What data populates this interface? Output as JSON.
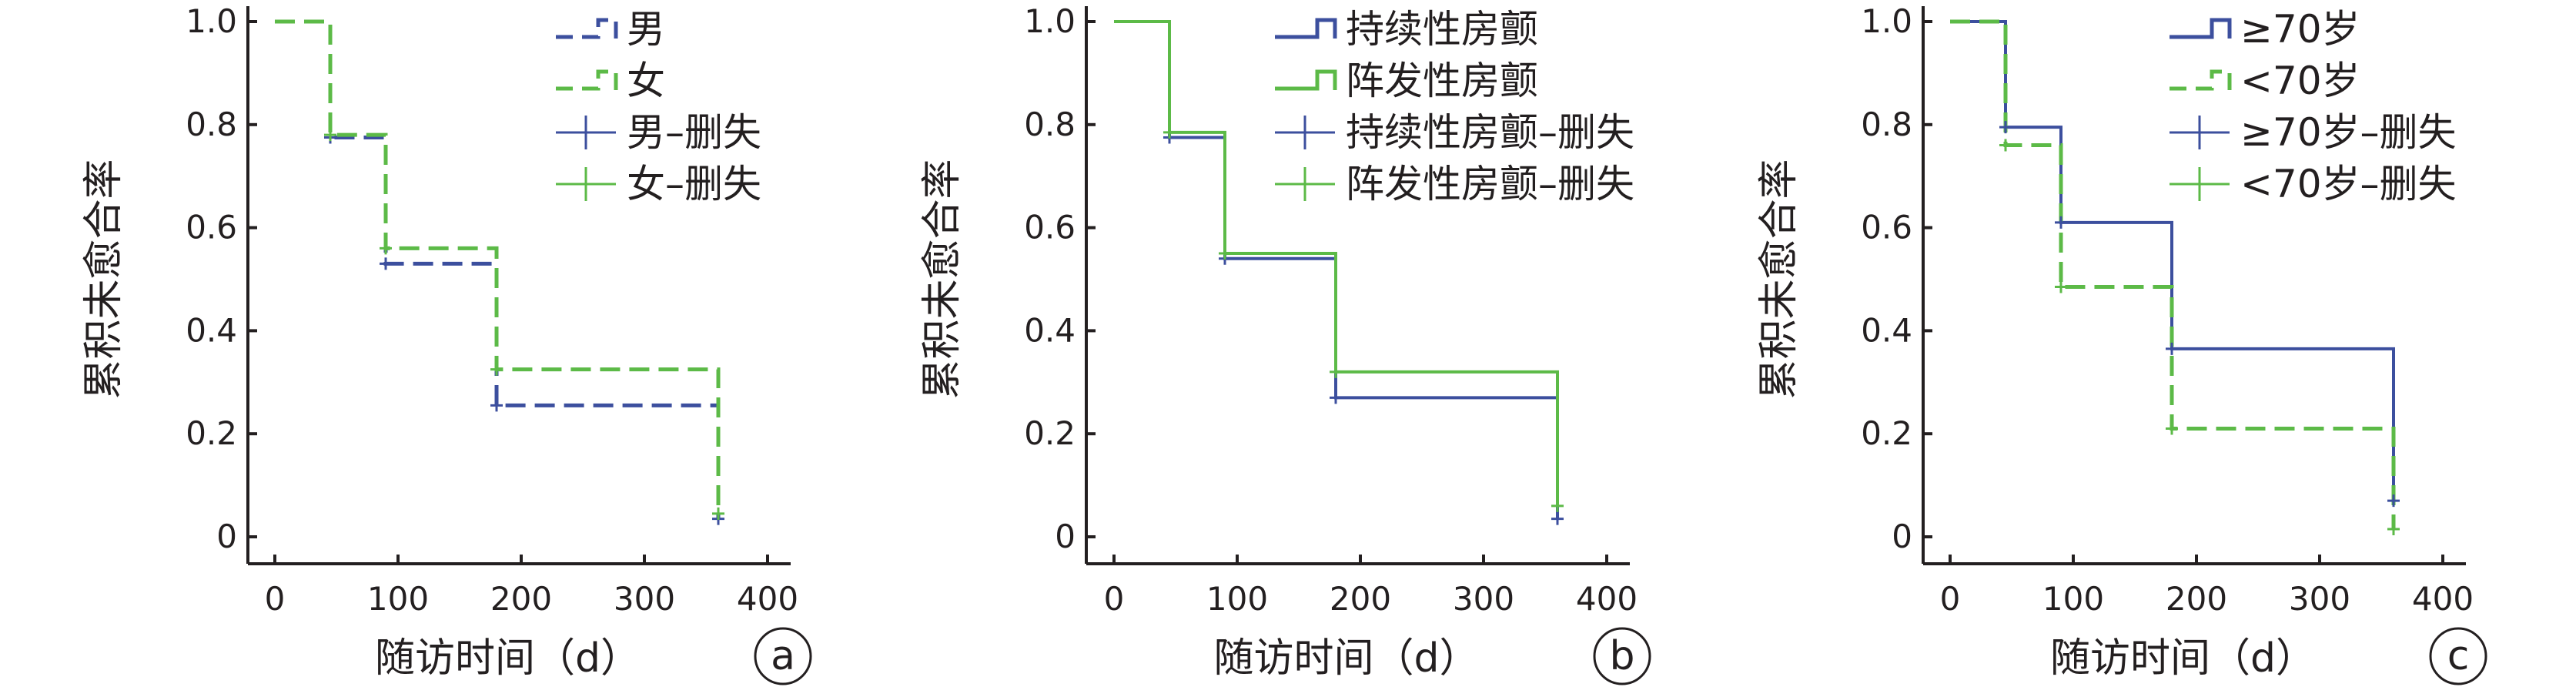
{
  "colors": {
    "blue": "#3c4f9e",
    "green": "#5cba47",
    "axis": "#231f20"
  },
  "chart_data": [
    {
      "type": "line",
      "step": true,
      "panel_label": "a",
      "xlabel": "随访时间（d）",
      "ylabel": "累积未愈合率",
      "xlim": [
        0,
        400
      ],
      "ylim": [
        0,
        1
      ],
      "xticks": [
        0,
        100,
        200,
        300,
        400
      ],
      "yticks": [
        0,
        0.2,
        0.4,
        0.6,
        0.8,
        1.0
      ],
      "ytick_labels": [
        "0",
        "0.2",
        "0.4",
        "0.6",
        "0.8",
        "1.0"
      ],
      "legend_position": "top-right",
      "series": [
        {
          "name": "男",
          "color": "blue",
          "dash": true,
          "x": [
            0,
            45,
            45,
            90,
            90,
            180,
            180,
            360,
            360
          ],
          "y": [
            1.0,
            1.0,
            0.775,
            0.775,
            0.53,
            0.53,
            0.255,
            0.255,
            0.035
          ]
        },
        {
          "name": "女",
          "color": "green",
          "dash": true,
          "x": [
            0,
            45,
            45,
            90,
            90,
            180,
            180,
            360,
            360
          ],
          "y": [
            1.0,
            1.0,
            0.78,
            0.78,
            0.56,
            0.56,
            0.325,
            0.325,
            0.045
          ]
        }
      ],
      "censored": [
        {
          "name": "男–删失",
          "color": "blue",
          "points": [
            [
              45,
              0.775
            ],
            [
              90,
              0.53
            ],
            [
              180,
              0.255
            ],
            [
              360,
              0.035
            ]
          ]
        },
        {
          "name": "女–删失",
          "color": "green",
          "points": [
            [
              45,
              0.78
            ],
            [
              90,
              0.56
            ],
            [
              180,
              0.325
            ],
            [
              360,
              0.045
            ]
          ]
        }
      ]
    },
    {
      "type": "line",
      "step": true,
      "panel_label": "b",
      "xlabel": "随访时间（d）",
      "ylabel": "累积未愈合率",
      "xlim": [
        0,
        400
      ],
      "ylim": [
        0,
        1
      ],
      "xticks": [
        0,
        100,
        200,
        300,
        400
      ],
      "yticks": [
        0,
        0.2,
        0.4,
        0.6,
        0.8,
        1.0
      ],
      "ytick_labels": [
        "0",
        "0.2",
        "0.4",
        "0.6",
        "0.8",
        "1.0"
      ],
      "legend_position": "top-right",
      "series": [
        {
          "name": "持续性房颤",
          "color": "blue",
          "dash": false,
          "x": [
            0,
            45,
            45,
            90,
            90,
            180,
            180,
            360,
            360
          ],
          "y": [
            1.0,
            1.0,
            0.775,
            0.775,
            0.54,
            0.54,
            0.27,
            0.27,
            0.035
          ]
        },
        {
          "name": "阵发性房颤",
          "color": "green",
          "dash": false,
          "x": [
            0,
            45,
            45,
            90,
            90,
            180,
            180,
            360,
            360
          ],
          "y": [
            1.0,
            1.0,
            0.785,
            0.785,
            0.55,
            0.55,
            0.32,
            0.32,
            0.06
          ]
        }
      ],
      "censored": [
        {
          "name": "持续性房颤–删失",
          "color": "blue",
          "points": [
            [
              45,
              0.775
            ],
            [
              90,
              0.54
            ],
            [
              180,
              0.27
            ],
            [
              360,
              0.035
            ]
          ]
        },
        {
          "name": "阵发性房颤–删失",
          "color": "green",
          "points": [
            [
              45,
              0.785
            ],
            [
              90,
              0.55
            ],
            [
              180,
              0.32
            ],
            [
              360,
              0.06
            ]
          ]
        }
      ]
    },
    {
      "type": "line",
      "step": true,
      "panel_label": "c",
      "xlabel": "随访时间（d）",
      "ylabel": "累积未愈合率",
      "xlim": [
        0,
        400
      ],
      "ylim": [
        0,
        1
      ],
      "xticks": [
        0,
        100,
        200,
        300,
        400
      ],
      "yticks": [
        0,
        0.2,
        0.4,
        0.6,
        0.8,
        1.0
      ],
      "ytick_labels": [
        "0",
        "0.2",
        "0.4",
        "0.6",
        "0.8",
        "1.0"
      ],
      "legend_position": "top-right",
      "series": [
        {
          "name": "≥70岁",
          "color": "blue",
          "dash": false,
          "x": [
            0,
            45,
            45,
            90,
            90,
            180,
            180,
            360,
            360
          ],
          "y": [
            1.0,
            1.0,
            0.795,
            0.795,
            0.61,
            0.61,
            0.365,
            0.365,
            0.07
          ]
        },
        {
          "name": "<70岁",
          "color": "green",
          "dash": true,
          "x": [
            0,
            45,
            45,
            90,
            90,
            180,
            180,
            360,
            360
          ],
          "y": [
            1.0,
            1.0,
            0.76,
            0.76,
            0.485,
            0.485,
            0.21,
            0.21,
            0.015
          ]
        }
      ],
      "censored": [
        {
          "name": "≥70岁–删失",
          "color": "blue",
          "points": [
            [
              45,
              0.795
            ],
            [
              90,
              0.61
            ],
            [
              180,
              0.365
            ],
            [
              360,
              0.07
            ]
          ]
        },
        {
          "name": "<70岁–删失",
          "color": "green",
          "points": [
            [
              45,
              0.76
            ],
            [
              90,
              0.485
            ],
            [
              180,
              0.21
            ],
            [
              360,
              0.015
            ]
          ]
        }
      ]
    }
  ]
}
